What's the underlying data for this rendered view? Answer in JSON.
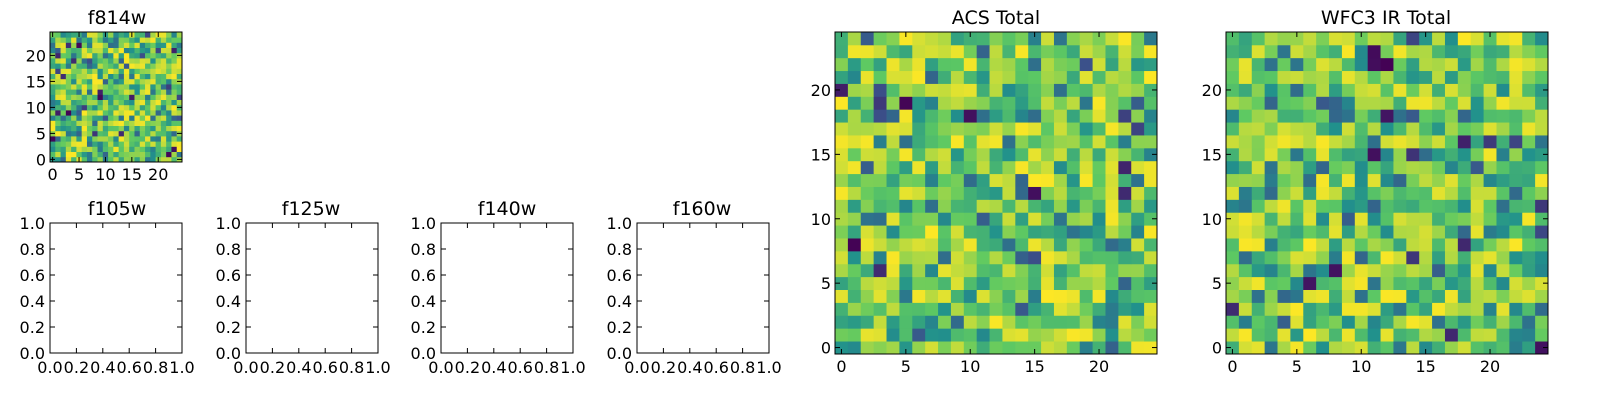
{
  "figure": {
    "background": "#ffffff",
    "colormap": "viridis",
    "colormap_stops": [
      "#440154",
      "#3b528b",
      "#21918c",
      "#5ec962",
      "#fde725"
    ]
  },
  "chart_data": [
    {
      "id": "f814w",
      "type": "heatmap",
      "title": "f814w",
      "grid_size": 25,
      "extent": [
        -0.5,
        24.5
      ],
      "xticks": [
        0,
        5,
        10,
        15,
        20
      ],
      "yticks": [
        0,
        5,
        10,
        15,
        20
      ],
      "seed": 814,
      "value_range": [
        0,
        1
      ]
    },
    {
      "id": "f105w",
      "type": "empty",
      "title": "f105w",
      "xlim": [
        0,
        1
      ],
      "ylim": [
        0,
        1
      ],
      "xticks": [
        "0.0",
        "0.2",
        "0.4",
        "0.6",
        "0.8",
        "1.0"
      ],
      "yticks": [
        "0.0",
        "0.2",
        "0.4",
        "0.6",
        "0.8",
        "1.0"
      ]
    },
    {
      "id": "f125w",
      "type": "empty",
      "title": "f125w",
      "xlim": [
        0,
        1
      ],
      "ylim": [
        0,
        1
      ],
      "xticks": [
        "0.0",
        "0.2",
        "0.4",
        "0.6",
        "0.8",
        "1.0"
      ],
      "yticks": [
        "0.0",
        "0.2",
        "0.4",
        "0.6",
        "0.8",
        "1.0"
      ]
    },
    {
      "id": "f140w",
      "type": "empty",
      "title": "f140w",
      "xlim": [
        0,
        1
      ],
      "ylim": [
        0,
        1
      ],
      "xticks": [
        "0.0",
        "0.2",
        "0.4",
        "0.6",
        "0.8",
        "1.0"
      ],
      "yticks": [
        "0.0",
        "0.2",
        "0.4",
        "0.6",
        "0.8",
        "1.0"
      ]
    },
    {
      "id": "f160w",
      "type": "empty",
      "title": "f160w",
      "xlim": [
        0,
        1
      ],
      "ylim": [
        0,
        1
      ],
      "xticks": [
        "0.0",
        "0.2",
        "0.4",
        "0.6",
        "0.8",
        "1.0"
      ],
      "yticks": [
        "0.0",
        "0.2",
        "0.4",
        "0.6",
        "0.8",
        "1.0"
      ]
    },
    {
      "id": "acs-total",
      "type": "heatmap",
      "title": "ACS Total",
      "grid_size": 25,
      "extent": [
        -0.5,
        24.5
      ],
      "xticks": [
        0,
        5,
        10,
        15,
        20
      ],
      "yticks": [
        0,
        5,
        10,
        15,
        20
      ],
      "seed": 1001,
      "value_range": [
        0,
        1
      ]
    },
    {
      "id": "wfc3-ir-total",
      "type": "heatmap",
      "title": "WFC3 IR Total",
      "grid_size": 25,
      "extent": [
        -0.5,
        24.5
      ],
      "xticks": [
        0,
        5,
        10,
        15,
        20
      ],
      "yticks": [
        0,
        5,
        10,
        15,
        20
      ],
      "seed": 2002,
      "value_range": [
        0,
        1
      ]
    }
  ]
}
